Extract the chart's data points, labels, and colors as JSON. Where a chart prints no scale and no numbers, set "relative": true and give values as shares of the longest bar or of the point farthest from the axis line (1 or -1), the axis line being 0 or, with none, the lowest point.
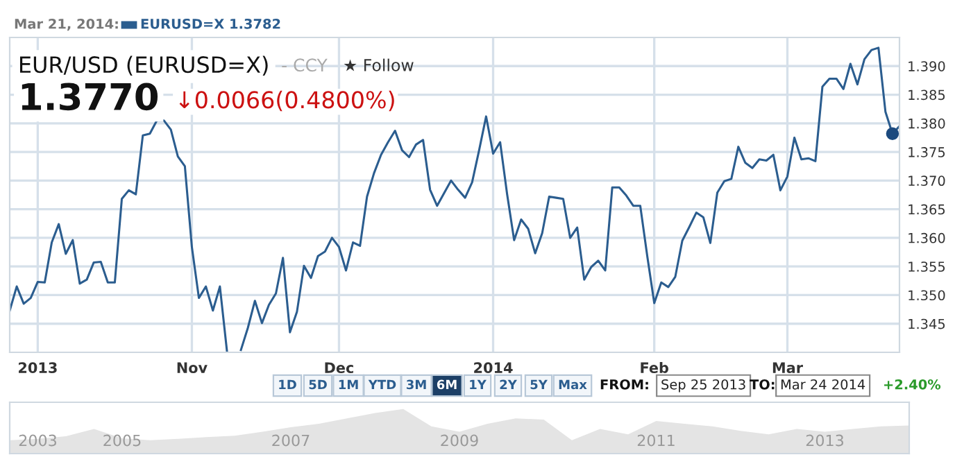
{
  "chart_data": [
    {
      "type": "line",
      "title": "EUR/USD (EURUSD=X)",
      "subtitle": "1.3770",
      "annotations": [
        "Mar 21, 2014:",
        "EURUSD=X 1.3782",
        "- CCY",
        "★ Follow",
        "↓0.0066(0.4800%)",
        "1D",
        "5D",
        "1M",
        "YTD",
        "3M",
        "6M",
        "1Y",
        "2Y",
        "5Y",
        "Max",
        "FROM:",
        "Sep 25 2013",
        "TO:",
        "Mar 24 2014",
        "+2.40%"
      ],
      "categories": [
        null,
        null,
        null,
        null,
        "2013",
        null,
        null,
        null,
        null,
        null,
        null,
        null,
        null,
        null,
        null,
        null,
        null,
        null,
        null,
        null,
        null,
        null,
        null,
        null,
        null,
        null,
        "Nov",
        null,
        null,
        null,
        null,
        null,
        null,
        null,
        null,
        null,
        null,
        null,
        null,
        null,
        null,
        null,
        null,
        null,
        null,
        null,
        null,
        "Dec",
        null,
        null,
        null,
        null,
        null,
        null,
        null,
        null,
        null,
        null,
        null,
        null,
        null,
        null,
        null,
        null,
        null,
        null,
        null,
        null,
        null,
        "2014",
        null,
        null,
        null,
        null,
        null,
        null,
        null,
        null,
        null,
        null,
        null,
        null,
        null,
        null,
        null,
        null,
        null,
        null,
        null,
        null,
        null,
        null,
        "Feb",
        null,
        null,
        null,
        null,
        null,
        null,
        null,
        null,
        null,
        null,
        null,
        null,
        null,
        null,
        null,
        null,
        null,
        null,
        "Mar",
        null,
        null,
        null,
        null,
        null,
        null,
        null,
        null,
        null,
        null,
        null,
        null,
        null,
        null,
        null,
        null
      ],
      "series": [
        {
          "type": "line",
          "color": "#2b5d8f",
          "values": [
            1.3473,
            1.3515,
            1.3485,
            1.3495,
            1.3523,
            1.3522,
            1.3592,
            1.3624,
            1.3572,
            1.3596,
            1.352,
            1.3527,
            1.3557,
            1.3558,
            1.3522,
            1.3522,
            1.3668,
            1.3683,
            1.3676,
            1.3779,
            1.3782,
            1.3805,
            1.3805,
            1.3789,
            1.3742,
            1.3725,
            1.3584,
            1.3495,
            1.3515,
            1.3473,
            1.3515,
            1.3403,
            null,
            1.3404,
            1.3443,
            1.349,
            1.3451,
            1.3483,
            1.3503,
            1.3565,
            1.3435,
            1.3471,
            1.3551,
            1.353,
            1.3568,
            1.3576,
            1.36,
            1.3584,
            1.3543,
            1.3592,
            1.3586,
            1.3672,
            1.3713,
            1.3745,
            1.3767,
            1.3787,
            1.3753,
            1.3741,
            1.3763,
            1.3771,
            1.3684,
            1.3656,
            1.3678,
            1.37,
            1.3684,
            1.367,
            1.3697,
            1.3753,
            1.3812,
            1.3747,
            1.3767,
            1.3676,
            1.3596,
            1.3632,
            1.3616,
            1.3573,
            1.3608,
            1.3672,
            1.367,
            1.3668,
            1.36,
            1.3618,
            1.3527,
            1.3549,
            1.356,
            1.3543,
            1.3688,
            1.3688,
            1.3674,
            1.3656,
            1.3656,
            1.3568,
            1.3486,
            1.3522,
            1.3514,
            1.3532,
            1.3595,
            1.3619,
            1.3644,
            1.3636,
            1.3591,
            1.3679,
            1.3699,
            1.3703,
            1.3759,
            1.3731,
            1.3722,
            1.3737,
            1.3735,
            1.3745,
            1.3683,
            1.3707,
            1.3775,
            1.3737,
            1.3739,
            1.3734,
            1.3864,
            1.3878,
            1.3878,
            1.386,
            1.3904,
            1.3868,
            1.3912,
            1.3928,
            1.3932,
            1.382,
            1.3782,
            1.3795
          ]
        },
        {
          "type": "scatter",
          "color": "#1c4a7e",
          "values": [
            null,
            null,
            null,
            null,
            null,
            null,
            null,
            null,
            null,
            null,
            null,
            null,
            null,
            null,
            null,
            null,
            null,
            null,
            null,
            null,
            null,
            null,
            null,
            null,
            null,
            null,
            null,
            null,
            null,
            null,
            null,
            null,
            null,
            null,
            null,
            null,
            null,
            null,
            null,
            null,
            null,
            null,
            null,
            null,
            null,
            null,
            null,
            null,
            null,
            null,
            null,
            null,
            null,
            null,
            null,
            null,
            null,
            null,
            null,
            null,
            null,
            null,
            null,
            null,
            null,
            null,
            null,
            null,
            null,
            null,
            null,
            null,
            null,
            null,
            null,
            null,
            null,
            null,
            null,
            null,
            null,
            null,
            null,
            null,
            null,
            null,
            null,
            null,
            null,
            null,
            null,
            null,
            null,
            null,
            null,
            null,
            null,
            null,
            null,
            null,
            null,
            null,
            null,
            null,
            null,
            null,
            null,
            null,
            null,
            null,
            null,
            null,
            null,
            null,
            null,
            null,
            null,
            null,
            null,
            null,
            null,
            null,
            null,
            null,
            null,
            null,
            1.3782,
            null
          ]
        }
      ],
      "ylim": [
        1.34,
        1.395
      ],
      "yticks": [
        1.345,
        {
          "value": 1.35,
          "label": "1.350"
        },
        1.355,
        {
          "value": 1.36,
          "label": "1.360"
        },
        1.365,
        {
          "value": 1.37,
          "label": "1.370"
        },
        1.375,
        {
          "value": 1.38,
          "label": "1.380"
        },
        1.385,
        {
          "value": 1.39,
          "label": "1.390"
        }
      ],
      "grid": true
    },
    {
      "type": "area",
      "relative": true,
      "categories": [
        null,
        "2003",
        null,
        null,
        "2005",
        null,
        null,
        null,
        null,
        null,
        "2007",
        null,
        null,
        null,
        null,
        null,
        "2009",
        null,
        null,
        null,
        null,
        null,
        null,
        "2011",
        null,
        null,
        null,
        null,
        null,
        "2013",
        null,
        null,
        null
      ],
      "series": [
        {
          "color": "#e4e4e4",
          "values": [
            0.3,
            0.33,
            0.39,
            0.55,
            0.34,
            0.3,
            0.33,
            0.37,
            0.4,
            0.49,
            0.59,
            0.67,
            0.79,
            0.91,
            1,
            0.61,
            0.49,
            0.67,
            0.79,
            0.76,
            0.3,
            0.55,
            0.43,
            0.73,
            0.67,
            0.61,
            0.51,
            0.43,
            0.55,
            0.49,
            0.55,
            0.61,
            0.63
          ]
        }
      ]
    }
  ]
}
